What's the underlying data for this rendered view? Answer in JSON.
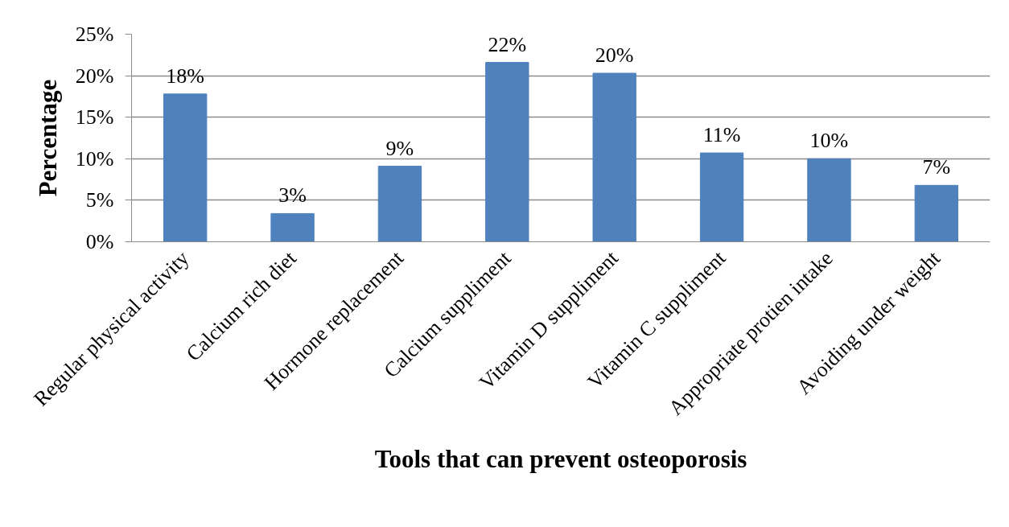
{
  "chart_data": {
    "type": "bar",
    "xlabel": "Tools that can prevent osteoporosis",
    "ylabel": "Percentage",
    "categories": [
      "Regular physical activity",
      "Calcium rich diet",
      "Hormone replacement",
      "Calcium suppliment",
      "Vitamin D suppliment",
      "Vitamin C suppliment",
      "Appropriate protien intake",
      "Avoiding under weight"
    ],
    "values": [
      17.8,
      3.4,
      9.1,
      21.6,
      20.3,
      10.7,
      10.0,
      6.8
    ],
    "value_labels": [
      "18%",
      "3%",
      "9%",
      "22%",
      "20%",
      "11%",
      "10%",
      "7%"
    ],
    "color": "#4f81bd",
    "ylim": [
      0,
      25
    ],
    "yticks": [
      {
        "value": 0,
        "label": "0%"
      },
      {
        "value": 5,
        "label": "5%"
      },
      {
        "value": 10,
        "label": "10%"
      },
      {
        "value": 15,
        "label": "15%"
      },
      {
        "value": 20,
        "label": "20%"
      },
      {
        "value": 25,
        "label": "25%"
      }
    ],
    "grid": "y"
  }
}
